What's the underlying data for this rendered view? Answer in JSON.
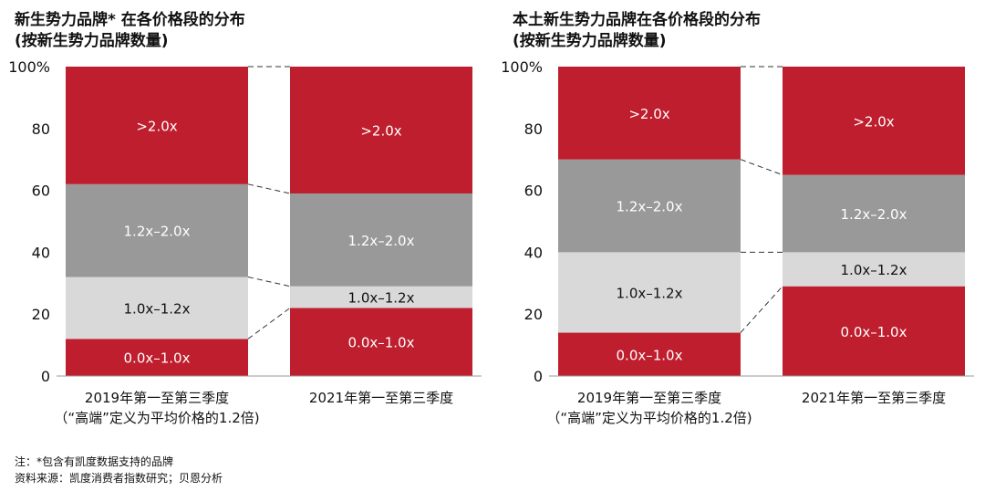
{
  "left_title": {
    "line1": "新生势力品牌* 在各价格段的分布",
    "line2": "(按新生势力品牌数量)"
  },
  "right_title": {
    "line1": "本土新生势力品牌在各价格段的分布",
    "line2": "(按新生势力品牌数量)"
  },
  "footnotes": {
    "note": "注：*包含有凯度数据支持的品牌",
    "source": "资料来源：凯度消费者指数研究；贝恩分析"
  },
  "colors": {
    "red": "#be1e2d",
    "dark_gray": "#999999",
    "light_gray": "#d9d9d9"
  },
  "chart_data": [
    {
      "type": "bar",
      "stacked": true,
      "percent": true,
      "ylim": [
        0,
        100
      ],
      "yticks": [
        "0",
        "20",
        "40",
        "60",
        "80",
        "100%"
      ],
      "categories": [
        [
          "2019年第一至第三季度",
          "（“高端”定义为平均价格的1.2倍)"
        ],
        [
          "2021年第一至第三季度"
        ]
      ],
      "series": [
        {
          "name": "0.0x–1.0x",
          "color": "#be1e2d",
          "label_color": "#ffffff",
          "values": [
            12,
            22
          ]
        },
        {
          "name": "1.0x–1.2x",
          "color": "#d9d9d9",
          "label_color": "#111111",
          "values": [
            20,
            7
          ]
        },
        {
          "name": "1.2x–2.0x",
          "color": "#999999",
          "label_color": "#ffffff",
          "values": [
            30,
            30
          ]
        },
        {
          "name": ">2.0x",
          "color": "#be1e2d",
          "label_color": "#ffffff",
          "values": [
            38,
            41
          ]
        }
      ]
    },
    {
      "type": "bar",
      "stacked": true,
      "percent": true,
      "ylim": [
        0,
        100
      ],
      "yticks": [
        "0",
        "20",
        "40",
        "60",
        "80",
        "100%"
      ],
      "categories": [
        [
          "2019年第一至第三季度",
          "（“高端”定义为平均价格的1.2倍)"
        ],
        [
          "2021年第一至第三季度"
        ]
      ],
      "series": [
        {
          "name": "0.0x–1.0x",
          "color": "#be1e2d",
          "label_color": "#ffffff",
          "values": [
            14,
            29
          ]
        },
        {
          "name": "1.0x–1.2x",
          "color": "#d9d9d9",
          "label_color": "#111111",
          "values": [
            26,
            11
          ]
        },
        {
          "name": "1.2x–2.0x",
          "color": "#999999",
          "label_color": "#ffffff",
          "values": [
            30,
            25
          ]
        },
        {
          "name": ">2.0x",
          "color": "#be1e2d",
          "label_color": "#ffffff",
          "values": [
            30,
            35
          ]
        }
      ]
    }
  ]
}
